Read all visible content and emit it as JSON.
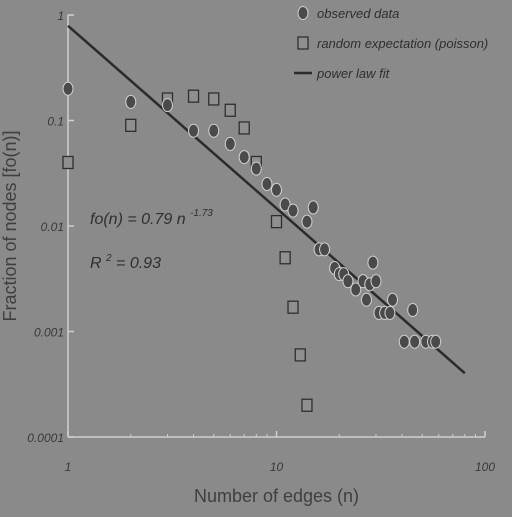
{
  "chart_data": {
    "type": "scatter",
    "xscale": "log",
    "yscale": "log",
    "xlim": [
      1,
      100
    ],
    "ylim": [
      0.0001,
      1
    ],
    "xticks": [
      {
        "value": 1,
        "label": "1"
      },
      {
        "value": 10,
        "label": "10"
      },
      {
        "value": 100,
        "label": "100"
      }
    ],
    "yticks": [
      {
        "value": 1,
        "label": "1"
      },
      {
        "value": 0.1,
        "label": "0.1"
      },
      {
        "value": 0.01,
        "label": "0.01"
      },
      {
        "value": 0.001,
        "label": "0.001"
      },
      {
        "value": 0.0001,
        "label": "0.0001"
      }
    ],
    "xlabel": "Number of edges (n)",
    "ylabel": "Fraction of nodes [fo(n)]",
    "legend_position": "top-right",
    "series": [
      {
        "name": "observed data",
        "marker": "circle",
        "points": [
          {
            "x": 1.0,
            "y": 0.2
          },
          {
            "x": 2.0,
            "y": 0.15
          },
          {
            "x": 3.0,
            "y": 0.14
          },
          {
            "x": 4.0,
            "y": 0.08
          },
          {
            "x": 5.0,
            "y": 0.08
          },
          {
            "x": 6.0,
            "y": 0.06
          },
          {
            "x": 7.0,
            "y": 0.045
          },
          {
            "x": 8.0,
            "y": 0.035
          },
          {
            "x": 9.0,
            "y": 0.025
          },
          {
            "x": 10.0,
            "y": 0.022
          },
          {
            "x": 11.0,
            "y": 0.016
          },
          {
            "x": 12.0,
            "y": 0.014
          },
          {
            "x": 14.0,
            "y": 0.011
          },
          {
            "x": 15.0,
            "y": 0.015
          },
          {
            "x": 16.0,
            "y": 0.006
          },
          {
            "x": 17.0,
            "y": 0.006
          },
          {
            "x": 19.0,
            "y": 0.004
          },
          {
            "x": 20.0,
            "y": 0.0035
          },
          {
            "x": 21.0,
            "y": 0.0035
          },
          {
            "x": 22.0,
            "y": 0.003
          },
          {
            "x": 24.0,
            "y": 0.0025
          },
          {
            "x": 26.0,
            "y": 0.003
          },
          {
            "x": 27.0,
            "y": 0.002
          },
          {
            "x": 28.0,
            "y": 0.0028
          },
          {
            "x": 29.0,
            "y": 0.0045
          },
          {
            "x": 30.0,
            "y": 0.003
          },
          {
            "x": 31.0,
            "y": 0.0015
          },
          {
            "x": 33.0,
            "y": 0.0015
          },
          {
            "x": 35.0,
            "y": 0.0015
          },
          {
            "x": 36.0,
            "y": 0.002
          },
          {
            "x": 41.0,
            "y": 0.0008
          },
          {
            "x": 45.0,
            "y": 0.0016
          },
          {
            "x": 46.0,
            "y": 0.0008
          },
          {
            "x": 52.0,
            "y": 0.0008
          },
          {
            "x": 56.0,
            "y": 0.0008
          },
          {
            "x": 58.0,
            "y": 0.0008
          }
        ]
      },
      {
        "name": "random expectation (poisson)",
        "marker": "square",
        "points": [
          {
            "x": 1.0,
            "y": 0.04
          },
          {
            "x": 2.0,
            "y": 0.09
          },
          {
            "x": 3.0,
            "y": 0.16
          },
          {
            "x": 4.0,
            "y": 0.17
          },
          {
            "x": 5.0,
            "y": 0.16
          },
          {
            "x": 6.0,
            "y": 0.125
          },
          {
            "x": 7.0,
            "y": 0.085
          },
          {
            "x": 8.0,
            "y": 0.04
          },
          {
            "x": 10.0,
            "y": 0.011
          },
          {
            "x": 11.0,
            "y": 0.005
          },
          {
            "x": 12.0,
            "y": 0.0017
          },
          {
            "x": 13.0,
            "y": 0.0006
          },
          {
            "x": 14.0,
            "y": 0.0002
          }
        ]
      },
      {
        "name": "power law fit",
        "marker": "line",
        "coefficient": 0.79,
        "exponent": -1.73,
        "x_range": [
          1,
          80
        ]
      }
    ],
    "annotations": {
      "equation_main": "fo(n) = 0.79 n",
      "equation_exponent": "-1.73",
      "r2_main": "R",
      "r2_sup": "2",
      "r2_rest": " = 0.93"
    }
  }
}
